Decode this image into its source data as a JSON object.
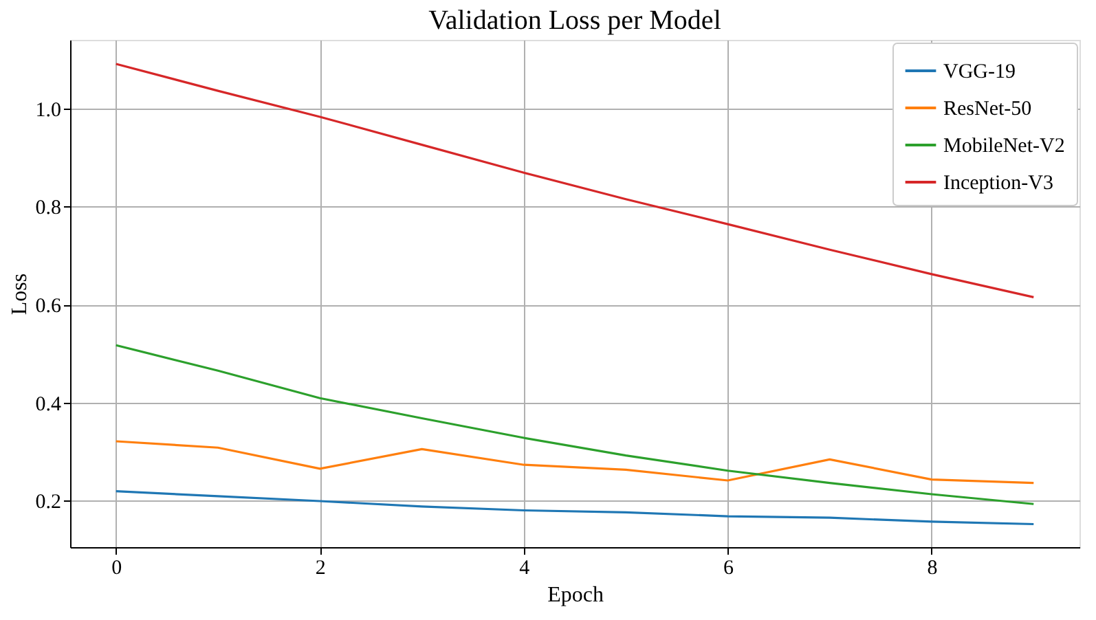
{
  "chart_data": {
    "type": "line",
    "title": "Validation Loss per Model",
    "xlabel": "Epoch",
    "ylabel": "Loss",
    "x": [
      0,
      1,
      2,
      3,
      4,
      5,
      6,
      7,
      8,
      9
    ],
    "series": [
      {
        "name": "VGG-19",
        "color": "#1f77b4",
        "values": [
          0.219,
          0.209,
          0.199,
          0.188,
          0.18,
          0.176,
          0.168,
          0.165,
          0.157,
          0.152
        ]
      },
      {
        "name": "ResNet-50",
        "color": "#ff7f0e",
        "values": [
          0.321,
          0.308,
          0.265,
          0.305,
          0.273,
          0.263,
          0.241,
          0.284,
          0.243,
          0.236
        ]
      },
      {
        "name": "MobileNet-V2",
        "color": "#2ca02c",
        "values": [
          0.517,
          0.465,
          0.409,
          0.368,
          0.328,
          0.292,
          0.261,
          0.236,
          0.213,
          0.193
        ]
      },
      {
        "name": "Inception-V3",
        "color": "#d62728",
        "values": [
          1.091,
          1.036,
          0.983,
          0.926,
          0.869,
          0.815,
          0.764,
          0.712,
          0.662,
          0.615
        ]
      }
    ],
    "xlim": [
      -0.45,
      9.45
    ],
    "xticks": [
      0,
      2,
      4,
      6,
      8
    ],
    "ylim": [
      0.105,
      1.14
    ],
    "yticks": [
      0.2,
      0.4,
      0.6,
      0.8,
      {
        "value": 1,
        "label": "1.0"
      }
    ],
    "grid": true,
    "legend": "top right",
    "marker": "none",
    "line_style": "solid"
  }
}
